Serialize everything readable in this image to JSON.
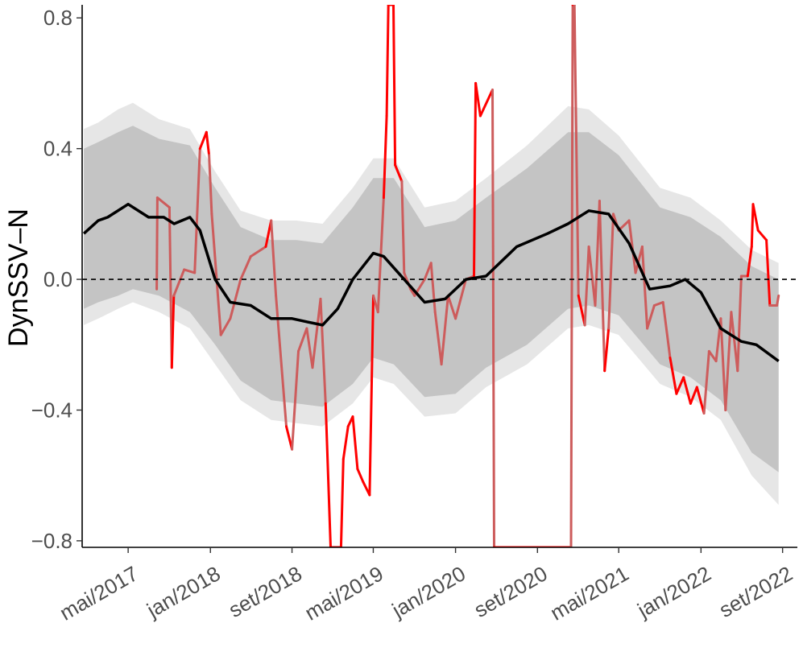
{
  "chart_data": {
    "type": "line",
    "title": "",
    "xlabel": "",
    "ylabel": "DynSSV–N",
    "x_range": [
      "2016-12-15",
      "2022-10-15"
    ],
    "ylim": [
      -0.82,
      0.84
    ],
    "y_ticks": [
      -0.8,
      -0.4,
      0.0,
      0.4,
      0.8
    ],
    "y_tick_labels": [
      "−0.8",
      "−0.4",
      "0.0",
      "0.4",
      "0.8"
    ],
    "x_ticks": [
      "2017-05-01",
      "2018-01-01",
      "2018-09-01",
      "2019-05-01",
      "2020-01-01",
      "2020-09-01",
      "2021-05-01",
      "2022-01-01",
      "2022-09-01"
    ],
    "x_tick_labels": [
      "mai/2017",
      "jan/2018",
      "set/2018",
      "mai/2019",
      "jan/2020",
      "set/2020",
      "mai/2021",
      "jan/2022",
      "set/2022"
    ],
    "reference_line": {
      "y": 0.0,
      "style": "dashed"
    },
    "grid": false,
    "legend": "none",
    "colors": {
      "outer_band": "#e6e6e6",
      "inner_band": "#c4c4c4",
      "mean_line": "#000000",
      "observed_inside": "#cd5c5c",
      "observed_outside": "#ff0000",
      "reference": "#000000",
      "axis": "#000000",
      "tick_text": "#4d4d4d"
    },
    "series": [
      {
        "role": "outer_band",
        "points": [
          [
            "2016-12-20",
            -0.14,
            0.46
          ],
          [
            "2017-02-01",
            -0.12,
            0.48
          ],
          [
            "2017-04-01",
            -0.09,
            0.52
          ],
          [
            "2017-05-15",
            -0.07,
            0.54
          ],
          [
            "2017-08-01",
            -0.1,
            0.49
          ],
          [
            "2017-11-01",
            -0.15,
            0.46
          ],
          [
            "2018-01-15",
            -0.26,
            0.33
          ],
          [
            "2018-04-01",
            -0.37,
            0.21
          ],
          [
            "2018-07-01",
            -0.43,
            0.18
          ],
          [
            "2018-09-15",
            -0.44,
            0.18
          ],
          [
            "2018-12-01",
            -0.45,
            0.17
          ],
          [
            "2019-03-01",
            -0.38,
            0.28
          ],
          [
            "2019-05-01",
            -0.3,
            0.37
          ],
          [
            "2019-07-01",
            -0.32,
            0.37
          ],
          [
            "2019-10-01",
            -0.42,
            0.22
          ],
          [
            "2020-01-01",
            -0.41,
            0.24
          ],
          [
            "2020-04-01",
            -0.33,
            0.31
          ],
          [
            "2020-08-01",
            -0.26,
            0.41
          ],
          [
            "2020-12-01",
            -0.15,
            0.53
          ],
          [
            "2021-02-01",
            -0.14,
            0.52
          ],
          [
            "2021-05-01",
            -0.17,
            0.44
          ],
          [
            "2021-09-01",
            -0.32,
            0.28
          ],
          [
            "2021-12-01",
            -0.36,
            0.25
          ],
          [
            "2022-03-01",
            -0.43,
            0.18
          ],
          [
            "2022-06-01",
            -0.6,
            0.09
          ],
          [
            "2022-08-20",
            -0.69,
            0.05
          ]
        ]
      },
      {
        "role": "inner_band",
        "points": [
          [
            "2016-12-20",
            -0.09,
            0.4
          ],
          [
            "2017-02-01",
            -0.07,
            0.42
          ],
          [
            "2017-04-01",
            -0.05,
            0.45
          ],
          [
            "2017-05-15",
            -0.03,
            0.47
          ],
          [
            "2017-08-01",
            -0.05,
            0.43
          ],
          [
            "2017-11-01",
            -0.1,
            0.41
          ],
          [
            "2018-01-15",
            -0.2,
            0.28
          ],
          [
            "2018-04-01",
            -0.31,
            0.16
          ],
          [
            "2018-07-01",
            -0.37,
            0.12
          ],
          [
            "2018-09-15",
            -0.38,
            0.12
          ],
          [
            "2018-12-01",
            -0.39,
            0.11
          ],
          [
            "2019-03-01",
            -0.32,
            0.22
          ],
          [
            "2019-05-01",
            -0.24,
            0.31
          ],
          [
            "2019-07-01",
            -0.26,
            0.31
          ],
          [
            "2019-10-01",
            -0.36,
            0.16
          ],
          [
            "2020-01-01",
            -0.35,
            0.18
          ],
          [
            "2020-04-01",
            -0.27,
            0.25
          ],
          [
            "2020-08-01",
            -0.2,
            0.34
          ],
          [
            "2020-12-01",
            -0.09,
            0.45
          ],
          [
            "2021-02-01",
            -0.08,
            0.45
          ],
          [
            "2021-05-01",
            -0.11,
            0.38
          ],
          [
            "2021-09-01",
            -0.26,
            0.22
          ],
          [
            "2021-12-01",
            -0.3,
            0.19
          ],
          [
            "2022-03-01",
            -0.37,
            0.13
          ],
          [
            "2022-06-01",
            -0.53,
            0.04
          ],
          [
            "2022-08-20",
            -0.59,
            0.0
          ]
        ]
      },
      {
        "role": "mean_line",
        "points": [
          [
            "2016-12-20",
            0.14
          ],
          [
            "2017-02-01",
            0.18
          ],
          [
            "2017-03-01",
            0.19
          ],
          [
            "2017-05-01",
            0.23
          ],
          [
            "2017-07-01",
            0.19
          ],
          [
            "2017-08-15",
            0.19
          ],
          [
            "2017-09-15",
            0.17
          ],
          [
            "2017-11-01",
            0.19
          ],
          [
            "2017-12-01",
            0.15
          ],
          [
            "2018-01-15",
            0.0
          ],
          [
            "2018-03-01",
            -0.07
          ],
          [
            "2018-05-01",
            -0.08
          ],
          [
            "2018-07-01",
            -0.12
          ],
          [
            "2018-09-01",
            -0.12
          ],
          [
            "2018-10-15",
            -0.13
          ],
          [
            "2018-12-01",
            -0.14
          ],
          [
            "2019-01-15",
            -0.09
          ],
          [
            "2019-03-01",
            0.0
          ],
          [
            "2019-05-01",
            0.08
          ],
          [
            "2019-06-01",
            0.07
          ],
          [
            "2019-08-01",
            0.0
          ],
          [
            "2019-10-01",
            -0.07
          ],
          [
            "2019-12-01",
            -0.06
          ],
          [
            "2020-02-01",
            0.0
          ],
          [
            "2020-04-01",
            0.01
          ],
          [
            "2020-07-01",
            0.1
          ],
          [
            "2020-10-01",
            0.14
          ],
          [
            "2020-12-01",
            0.17
          ],
          [
            "2021-02-01",
            0.21
          ],
          [
            "2021-04-01",
            0.2
          ],
          [
            "2021-06-01",
            0.11
          ],
          [
            "2021-08-01",
            -0.03
          ],
          [
            "2021-10-01",
            -0.02
          ],
          [
            "2021-11-15",
            0.0
          ],
          [
            "2022-01-01",
            -0.04
          ],
          [
            "2022-03-01",
            -0.15
          ],
          [
            "2022-05-01",
            -0.19
          ],
          [
            "2022-06-15",
            -0.2
          ],
          [
            "2022-08-20",
            -0.25
          ]
        ]
      },
      {
        "role": "observed",
        "points": [
          [
            "2017-07-25",
            -0.03
          ],
          [
            "2017-07-27",
            0.25
          ],
          [
            "2017-09-01",
            0.22
          ],
          [
            "2017-09-08",
            -0.27
          ],
          [
            "2017-09-14",
            -0.05
          ],
          [
            "2017-10-15",
            0.03
          ],
          [
            "2017-11-15",
            0.02
          ],
          [
            "2017-12-01",
            0.4
          ],
          [
            "2017-12-20",
            0.45
          ],
          [
            "2017-12-28",
            0.38
          ],
          [
            "2018-01-05",
            0.2
          ],
          [
            "2018-02-01",
            -0.17
          ],
          [
            "2018-03-01",
            -0.12
          ],
          [
            "2018-04-01",
            0.0
          ],
          [
            "2018-05-01",
            0.07
          ],
          [
            "2018-06-15",
            0.1
          ],
          [
            "2018-07-01",
            0.18
          ],
          [
            "2018-07-15",
            -0.05
          ],
          [
            "2018-08-15",
            -0.45
          ],
          [
            "2018-09-01",
            -0.52
          ],
          [
            "2018-09-20",
            -0.22
          ],
          [
            "2018-10-15",
            -0.15
          ],
          [
            "2018-11-01",
            -0.27
          ],
          [
            "2018-11-25",
            -0.06
          ],
          [
            "2018-12-10",
            -0.38
          ],
          [
            "2018-12-25",
            -0.82
          ],
          [
            "2019-01-25",
            -0.82
          ],
          [
            "2019-02-01",
            -0.55
          ],
          [
            "2019-02-15",
            -0.45
          ],
          [
            "2019-03-01",
            -0.42
          ],
          [
            "2019-03-15",
            -0.58
          ],
          [
            "2019-04-01",
            -0.62
          ],
          [
            "2019-04-20",
            -0.66
          ],
          [
            "2019-05-01",
            -0.05
          ],
          [
            "2019-05-15",
            -0.1
          ],
          [
            "2019-06-01",
            0.25
          ],
          [
            "2019-06-10",
            0.5
          ],
          [
            "2019-06-15",
            0.84
          ],
          [
            "2019-06-30",
            0.84
          ],
          [
            "2019-07-05",
            0.35
          ],
          [
            "2019-07-25",
            0.3
          ],
          [
            "2019-08-01",
            0.02
          ],
          [
            "2019-08-20",
            -0.03
          ],
          [
            "2019-09-01",
            -0.05
          ],
          [
            "2019-10-01",
            0.0
          ],
          [
            "2019-10-20",
            0.05
          ],
          [
            "2019-11-01",
            -0.1
          ],
          [
            "2019-11-20",
            -0.26
          ],
          [
            "2019-12-10",
            -0.05
          ],
          [
            "2020-01-01",
            -0.12
          ],
          [
            "2020-02-01",
            0.0
          ],
          [
            "2020-02-25",
            0.01
          ],
          [
            "2020-03-01",
            0.6
          ],
          [
            "2020-03-15",
            0.5
          ],
          [
            "2020-04-20",
            0.58
          ],
          [
            "2020-04-25",
            -0.82
          ],
          [
            "2020-12-10",
            -0.82
          ],
          [
            "2020-12-15",
            0.84
          ],
          [
            "2020-12-20",
            0.84
          ],
          [
            "2021-01-01",
            -0.05
          ],
          [
            "2021-01-20",
            -0.14
          ],
          [
            "2021-02-01",
            0.1
          ],
          [
            "2021-02-20",
            -0.08
          ],
          [
            "2021-03-05",
            0.24
          ],
          [
            "2021-03-20",
            -0.28
          ],
          [
            "2021-04-01",
            -0.15
          ],
          [
            "2021-04-15",
            0.2
          ],
          [
            "2021-05-01",
            0.15
          ],
          [
            "2021-06-01",
            0.18
          ],
          [
            "2021-06-20",
            0.02
          ],
          [
            "2021-07-10",
            0.1
          ],
          [
            "2021-07-25",
            -0.15
          ],
          [
            "2021-08-15",
            -0.08
          ],
          [
            "2021-09-10",
            -0.07
          ],
          [
            "2021-10-01",
            -0.24
          ],
          [
            "2021-10-20",
            -0.35
          ],
          [
            "2021-11-10",
            -0.3
          ],
          [
            "2021-12-01",
            -0.38
          ],
          [
            "2021-12-20",
            -0.33
          ],
          [
            "2022-01-10",
            -0.41
          ],
          [
            "2022-01-25",
            -0.22
          ],
          [
            "2022-02-15",
            -0.25
          ],
          [
            "2022-03-01",
            -0.12
          ],
          [
            "2022-03-15",
            -0.4
          ],
          [
            "2022-04-01",
            -0.1
          ],
          [
            "2022-04-20",
            -0.28
          ],
          [
            "2022-05-01",
            0.01
          ],
          [
            "2022-05-20",
            0.01
          ],
          [
            "2022-06-01",
            0.1
          ],
          [
            "2022-06-05",
            0.23
          ],
          [
            "2022-06-20",
            0.15
          ],
          [
            "2022-07-15",
            0.12
          ],
          [
            "2022-07-25",
            -0.08
          ],
          [
            "2022-08-15",
            -0.08
          ],
          [
            "2022-08-20",
            -0.05
          ]
        ]
      }
    ]
  }
}
